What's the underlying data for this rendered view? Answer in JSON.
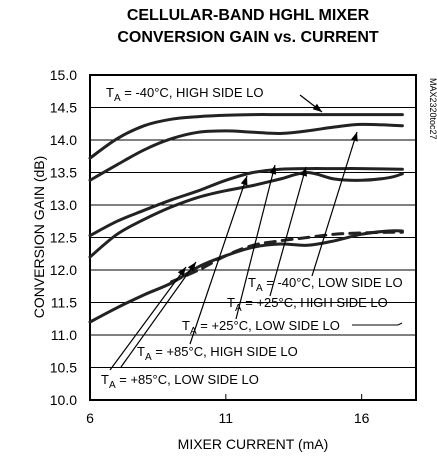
{
  "chart_data": {
    "type": "line",
    "title_line1": "CELLULAR-BAND HGHL MIXER",
    "title_line2": "CONVERSION GAIN vs. CURRENT",
    "xlabel": "MIXER CURRENT (mA)",
    "ylabel": "CONVERSION GAIN (dB)",
    "xlim": [
      6,
      18
    ],
    "ylim": [
      10.0,
      15.0
    ],
    "xticks": [
      "6",
      "11",
      "16"
    ],
    "yticks": [
      "10.0",
      "10.5",
      "11.0",
      "11.5",
      "12.0",
      "12.5",
      "13.0",
      "13.5",
      "14.0",
      "14.5",
      "15.0"
    ],
    "grid": "horizontal",
    "part_code": "MAX2320toc27",
    "series": [
      {
        "label_prefix": "T",
        "label_sub": "A",
        "label_suffix": " = -40°C, HIGH SIDE LO",
        "x": [
          6,
          7,
          8,
          9,
          10,
          11,
          12,
          13,
          14,
          15,
          16,
          17.5
        ],
        "y": [
          13.72,
          14.02,
          14.22,
          14.32,
          14.36,
          14.38,
          14.39,
          14.39,
          14.39,
          14.39,
          14.39,
          14.39
        ]
      },
      {
        "label_prefix": "T",
        "label_sub": "A",
        "label_suffix": " = -40°C, LOW SIDE LO",
        "x": [
          6,
          7,
          8,
          9,
          10,
          11,
          12,
          13,
          14,
          15,
          16,
          17.5
        ],
        "y": [
          13.38,
          13.62,
          13.85,
          14.02,
          14.12,
          14.14,
          14.12,
          14.1,
          14.14,
          14.2,
          14.24,
          14.22
        ]
      },
      {
        "label_prefix": "T",
        "label_sub": "A",
        "label_suffix": " = +25°C, HIGH SIDE LO",
        "x": [
          6,
          7,
          8,
          9,
          10,
          11,
          12,
          13,
          14,
          15,
          16,
          17.5
        ],
        "y": [
          12.53,
          12.75,
          12.92,
          13.08,
          13.22,
          13.38,
          13.5,
          13.55,
          13.56,
          13.56,
          13.56,
          13.55
        ]
      },
      {
        "label_prefix": "T",
        "label_sub": "A",
        "label_suffix": " = +25°C, LOW SIDE LO",
        "x": [
          6,
          7,
          8,
          9,
          10,
          11,
          12,
          13,
          14,
          15,
          16,
          17,
          17.5
        ],
        "y": [
          12.2,
          12.55,
          12.78,
          12.97,
          13.12,
          13.22,
          13.3,
          13.4,
          13.5,
          13.4,
          13.38,
          13.42,
          13.48
        ]
      },
      {
        "label_prefix": "T",
        "label_sub": "A",
        "label_suffix": " = +85°C, HIGH SIDE LO",
        "dashed": true,
        "x": [
          9,
          10,
          11,
          12,
          13,
          14,
          15,
          16,
          17,
          17.5
        ],
        "y": [
          11.82,
          12.0,
          12.22,
          12.38,
          12.45,
          12.5,
          12.55,
          12.57,
          12.58,
          12.58
        ]
      },
      {
        "label_prefix": "T",
        "label_sub": "A",
        "label_suffix": " = +85°C, LOW SIDE LO",
        "x": [
          6,
          7,
          8,
          9,
          10,
          11,
          12,
          13,
          14,
          15,
          16,
          17,
          17.5
        ],
        "y": [
          11.2,
          11.42,
          11.62,
          11.8,
          12.05,
          12.22,
          12.35,
          12.4,
          12.38,
          12.45,
          12.55,
          12.6,
          12.6
        ]
      }
    ]
  }
}
